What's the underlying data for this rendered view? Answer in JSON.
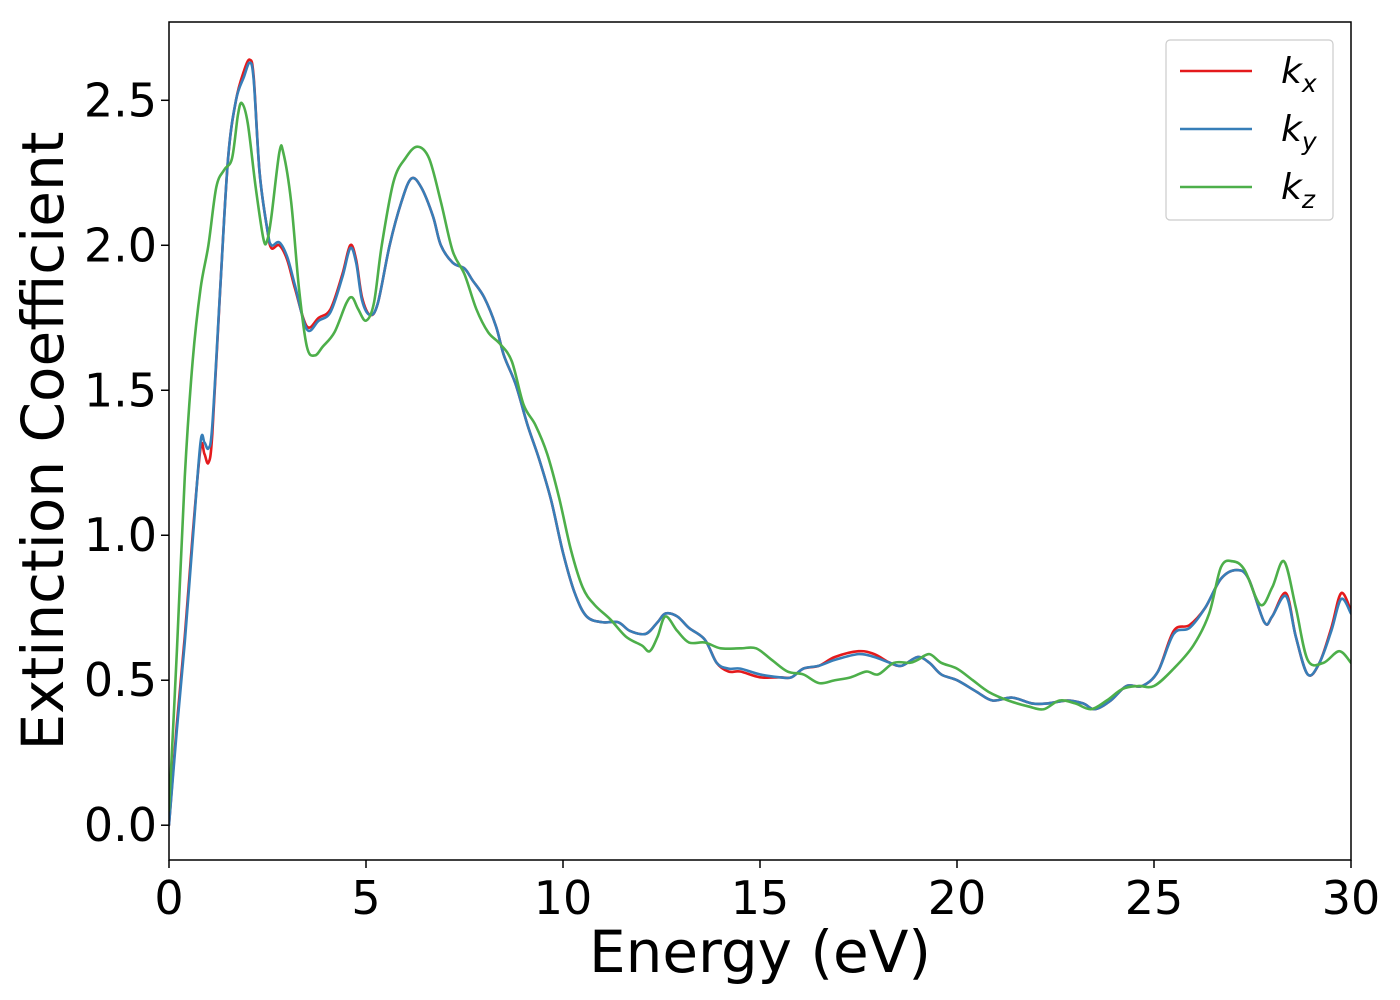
{
  "chart_data": {
    "type": "line",
    "title": "",
    "xlabel": "Energy (eV)",
    "ylabel": "Extinction Coefficient",
    "xlim": [
      0,
      30
    ],
    "ylim": [
      -0.12,
      2.77
    ],
    "xticks": [
      0,
      5,
      10,
      15,
      20,
      25,
      30
    ],
    "xtick_labels": [
      "0",
      "5",
      "10",
      "15",
      "20",
      "25",
      "30"
    ],
    "yticks": [
      0.0,
      0.5,
      1.0,
      1.5,
      2.0,
      2.5
    ],
    "ytick_labels": [
      "0.0",
      "0.5",
      "1.0",
      "1.5",
      "2.0",
      "2.5"
    ],
    "grid": false,
    "legend_position": "top-right",
    "series": [
      {
        "name": "k",
        "subscript": "x",
        "color": "#e41a1c",
        "points": [
          [
            0,
            0.0
          ],
          [
            0.2,
            0.35
          ],
          [
            0.4,
            0.65
          ],
          [
            0.6,
            1.0
          ],
          [
            0.8,
            1.3
          ],
          [
            0.9,
            1.28
          ],
          [
            1.0,
            1.25
          ],
          [
            1.1,
            1.35
          ],
          [
            1.3,
            1.85
          ],
          [
            1.5,
            2.3
          ],
          [
            1.7,
            2.5
          ],
          [
            1.9,
            2.6
          ],
          [
            2.05,
            2.64
          ],
          [
            2.15,
            2.58
          ],
          [
            2.3,
            2.25
          ],
          [
            2.5,
            2.05
          ],
          [
            2.6,
            1.99
          ],
          [
            2.8,
            2.0
          ],
          [
            3.0,
            1.95
          ],
          [
            3.2,
            1.85
          ],
          [
            3.5,
            1.72
          ],
          [
            3.8,
            1.75
          ],
          [
            4.1,
            1.78
          ],
          [
            4.4,
            1.9
          ],
          [
            4.6,
            2.0
          ],
          [
            4.75,
            1.95
          ],
          [
            4.9,
            1.82
          ],
          [
            5.1,
            1.76
          ],
          [
            5.3,
            1.8
          ],
          [
            5.6,
            2.0
          ],
          [
            5.9,
            2.15
          ],
          [
            6.15,
            2.23
          ],
          [
            6.4,
            2.2
          ],
          [
            6.7,
            2.1
          ],
          [
            6.9,
            2.0
          ],
          [
            7.2,
            1.94
          ],
          [
            7.5,
            1.92
          ],
          [
            7.7,
            1.88
          ],
          [
            8.0,
            1.82
          ],
          [
            8.3,
            1.72
          ],
          [
            8.5,
            1.62
          ],
          [
            8.8,
            1.52
          ],
          [
            9.1,
            1.38
          ],
          [
            9.4,
            1.26
          ],
          [
            9.7,
            1.12
          ],
          [
            10.0,
            0.94
          ],
          [
            10.3,
            0.8
          ],
          [
            10.6,
            0.72
          ],
          [
            11.0,
            0.7
          ],
          [
            11.4,
            0.7
          ],
          [
            11.7,
            0.67
          ],
          [
            12.1,
            0.66
          ],
          [
            12.4,
            0.7
          ],
          [
            12.6,
            0.73
          ],
          [
            12.9,
            0.72
          ],
          [
            13.2,
            0.68
          ],
          [
            13.6,
            0.64
          ],
          [
            13.9,
            0.56
          ],
          [
            14.2,
            0.53
          ],
          [
            14.5,
            0.53
          ],
          [
            15.0,
            0.51
          ],
          [
            15.5,
            0.51
          ],
          [
            15.8,
            0.51
          ],
          [
            16.1,
            0.54
          ],
          [
            16.5,
            0.55
          ],
          [
            16.9,
            0.58
          ],
          [
            17.5,
            0.6
          ],
          [
            17.9,
            0.59
          ],
          [
            18.3,
            0.56
          ],
          [
            18.6,
            0.55
          ],
          [
            19.0,
            0.58
          ],
          [
            19.3,
            0.56
          ],
          [
            19.6,
            0.52
          ],
          [
            20.0,
            0.5
          ],
          [
            20.5,
            0.46
          ],
          [
            20.9,
            0.43
          ],
          [
            21.4,
            0.44
          ],
          [
            21.9,
            0.42
          ],
          [
            22.3,
            0.42
          ],
          [
            22.8,
            0.43
          ],
          [
            23.2,
            0.42
          ],
          [
            23.5,
            0.4
          ],
          [
            23.9,
            0.43
          ],
          [
            24.3,
            0.48
          ],
          [
            24.7,
            0.48
          ],
          [
            25.1,
            0.53
          ],
          [
            25.5,
            0.67
          ],
          [
            25.9,
            0.69
          ],
          [
            26.3,
            0.75
          ],
          [
            26.7,
            0.85
          ],
          [
            27.1,
            0.88
          ],
          [
            27.4,
            0.85
          ],
          [
            27.8,
            0.7
          ],
          [
            28.0,
            0.72
          ],
          [
            28.35,
            0.8
          ],
          [
            28.6,
            0.65
          ],
          [
            28.9,
            0.52
          ],
          [
            29.2,
            0.56
          ],
          [
            29.5,
            0.68
          ],
          [
            29.75,
            0.8
          ],
          [
            30.0,
            0.74
          ]
        ]
      },
      {
        "name": "k",
        "subscript": "y",
        "color": "#377eb8",
        "points": [
          [
            0,
            0.0
          ],
          [
            0.2,
            0.33
          ],
          [
            0.4,
            0.63
          ],
          [
            0.6,
            0.98
          ],
          [
            0.8,
            1.32
          ],
          [
            0.9,
            1.32
          ],
          [
            1.0,
            1.3
          ],
          [
            1.1,
            1.38
          ],
          [
            1.3,
            1.85
          ],
          [
            1.5,
            2.3
          ],
          [
            1.7,
            2.5
          ],
          [
            1.9,
            2.58
          ],
          [
            2.05,
            2.63
          ],
          [
            2.15,
            2.57
          ],
          [
            2.3,
            2.25
          ],
          [
            2.5,
            2.05
          ],
          [
            2.6,
            2.0
          ],
          [
            2.8,
            2.01
          ],
          [
            3.0,
            1.96
          ],
          [
            3.2,
            1.86
          ],
          [
            3.5,
            1.71
          ],
          [
            3.8,
            1.74
          ],
          [
            4.1,
            1.77
          ],
          [
            4.4,
            1.89
          ],
          [
            4.6,
            1.99
          ],
          [
            4.75,
            1.94
          ],
          [
            4.9,
            1.81
          ],
          [
            5.1,
            1.76
          ],
          [
            5.3,
            1.8
          ],
          [
            5.6,
            2.0
          ],
          [
            5.9,
            2.15
          ],
          [
            6.15,
            2.23
          ],
          [
            6.4,
            2.2
          ],
          [
            6.7,
            2.1
          ],
          [
            6.9,
            2.0
          ],
          [
            7.2,
            1.94
          ],
          [
            7.5,
            1.92
          ],
          [
            7.7,
            1.88
          ],
          [
            8.0,
            1.82
          ],
          [
            8.3,
            1.72
          ],
          [
            8.5,
            1.62
          ],
          [
            8.8,
            1.52
          ],
          [
            9.1,
            1.38
          ],
          [
            9.4,
            1.26
          ],
          [
            9.7,
            1.12
          ],
          [
            10.0,
            0.94
          ],
          [
            10.3,
            0.8
          ],
          [
            10.6,
            0.72
          ],
          [
            11.0,
            0.7
          ],
          [
            11.4,
            0.7
          ],
          [
            11.7,
            0.67
          ],
          [
            12.1,
            0.66
          ],
          [
            12.4,
            0.7
          ],
          [
            12.6,
            0.73
          ],
          [
            12.9,
            0.72
          ],
          [
            13.2,
            0.68
          ],
          [
            13.6,
            0.64
          ],
          [
            13.9,
            0.56
          ],
          [
            14.2,
            0.54
          ],
          [
            14.5,
            0.54
          ],
          [
            15.0,
            0.52
          ],
          [
            15.5,
            0.51
          ],
          [
            15.8,
            0.51
          ],
          [
            16.1,
            0.54
          ],
          [
            16.5,
            0.55
          ],
          [
            16.9,
            0.57
          ],
          [
            17.5,
            0.59
          ],
          [
            17.9,
            0.58
          ],
          [
            18.3,
            0.56
          ],
          [
            18.6,
            0.55
          ],
          [
            19.0,
            0.58
          ],
          [
            19.3,
            0.56
          ],
          [
            19.6,
            0.52
          ],
          [
            20.0,
            0.5
          ],
          [
            20.5,
            0.46
          ],
          [
            20.9,
            0.43
          ],
          [
            21.4,
            0.44
          ],
          [
            21.9,
            0.42
          ],
          [
            22.3,
            0.42
          ],
          [
            22.8,
            0.43
          ],
          [
            23.2,
            0.42
          ],
          [
            23.5,
            0.4
          ],
          [
            23.9,
            0.43
          ],
          [
            24.3,
            0.48
          ],
          [
            24.7,
            0.48
          ],
          [
            25.1,
            0.53
          ],
          [
            25.5,
            0.66
          ],
          [
            25.9,
            0.68
          ],
          [
            26.3,
            0.75
          ],
          [
            26.7,
            0.85
          ],
          [
            27.1,
            0.88
          ],
          [
            27.4,
            0.85
          ],
          [
            27.8,
            0.7
          ],
          [
            28.0,
            0.72
          ],
          [
            28.35,
            0.79
          ],
          [
            28.6,
            0.65
          ],
          [
            28.9,
            0.52
          ],
          [
            29.2,
            0.56
          ],
          [
            29.5,
            0.67
          ],
          [
            29.75,
            0.78
          ],
          [
            30.0,
            0.73
          ]
        ]
      },
      {
        "name": "k",
        "subscript": "z",
        "color": "#4daf4a",
        "points": [
          [
            0,
            0.05
          ],
          [
            0.2,
            0.6
          ],
          [
            0.4,
            1.2
          ],
          [
            0.6,
            1.6
          ],
          [
            0.8,
            1.85
          ],
          [
            1.0,
            2.0
          ],
          [
            1.2,
            2.2
          ],
          [
            1.4,
            2.26
          ],
          [
            1.6,
            2.3
          ],
          [
            1.75,
            2.45
          ],
          [
            1.85,
            2.49
          ],
          [
            2.0,
            2.42
          ],
          [
            2.2,
            2.2
          ],
          [
            2.4,
            2.02
          ],
          [
            2.5,
            2.02
          ],
          [
            2.6,
            2.1
          ],
          [
            2.8,
            2.32
          ],
          [
            2.9,
            2.32
          ],
          [
            3.1,
            2.15
          ],
          [
            3.3,
            1.85
          ],
          [
            3.5,
            1.65
          ],
          [
            3.7,
            1.62
          ],
          [
            3.9,
            1.65
          ],
          [
            4.2,
            1.7
          ],
          [
            4.5,
            1.8
          ],
          [
            4.65,
            1.82
          ],
          [
            4.8,
            1.78
          ],
          [
            5.0,
            1.74
          ],
          [
            5.2,
            1.8
          ],
          [
            5.4,
            2.0
          ],
          [
            5.7,
            2.22
          ],
          [
            6.0,
            2.3
          ],
          [
            6.3,
            2.34
          ],
          [
            6.6,
            2.3
          ],
          [
            6.9,
            2.15
          ],
          [
            7.2,
            1.98
          ],
          [
            7.5,
            1.9
          ],
          [
            7.8,
            1.78
          ],
          [
            8.1,
            1.7
          ],
          [
            8.4,
            1.66
          ],
          [
            8.7,
            1.6
          ],
          [
            9.0,
            1.45
          ],
          [
            9.3,
            1.38
          ],
          [
            9.6,
            1.28
          ],
          [
            9.9,
            1.13
          ],
          [
            10.2,
            0.95
          ],
          [
            10.5,
            0.82
          ],
          [
            10.8,
            0.76
          ],
          [
            11.2,
            0.71
          ],
          [
            11.6,
            0.65
          ],
          [
            12.0,
            0.62
          ],
          [
            12.2,
            0.6
          ],
          [
            12.4,
            0.65
          ],
          [
            12.6,
            0.72
          ],
          [
            12.9,
            0.67
          ],
          [
            13.2,
            0.63
          ],
          [
            13.6,
            0.63
          ],
          [
            14.0,
            0.61
          ],
          [
            14.5,
            0.61
          ],
          [
            14.9,
            0.61
          ],
          [
            15.3,
            0.57
          ],
          [
            15.7,
            0.53
          ],
          [
            16.1,
            0.52
          ],
          [
            16.5,
            0.49
          ],
          [
            16.9,
            0.5
          ],
          [
            17.3,
            0.51
          ],
          [
            17.7,
            0.53
          ],
          [
            18.0,
            0.52
          ],
          [
            18.4,
            0.56
          ],
          [
            18.8,
            0.56
          ],
          [
            19.0,
            0.57
          ],
          [
            19.3,
            0.59
          ],
          [
            19.6,
            0.56
          ],
          [
            20.0,
            0.54
          ],
          [
            20.4,
            0.5
          ],
          [
            20.8,
            0.46
          ],
          [
            21.3,
            0.43
          ],
          [
            21.8,
            0.41
          ],
          [
            22.2,
            0.4
          ],
          [
            22.6,
            0.43
          ],
          [
            23.0,
            0.42
          ],
          [
            23.4,
            0.4
          ],
          [
            23.8,
            0.43
          ],
          [
            24.2,
            0.47
          ],
          [
            24.6,
            0.48
          ],
          [
            25.0,
            0.48
          ],
          [
            25.5,
            0.54
          ],
          [
            26.0,
            0.62
          ],
          [
            26.4,
            0.73
          ],
          [
            26.7,
            0.89
          ],
          [
            27.0,
            0.91
          ],
          [
            27.3,
            0.88
          ],
          [
            27.7,
            0.76
          ],
          [
            28.0,
            0.82
          ],
          [
            28.3,
            0.91
          ],
          [
            28.6,
            0.75
          ],
          [
            28.9,
            0.57
          ],
          [
            29.3,
            0.56
          ],
          [
            29.7,
            0.6
          ],
          [
            30.0,
            0.56
          ]
        ]
      }
    ]
  }
}
